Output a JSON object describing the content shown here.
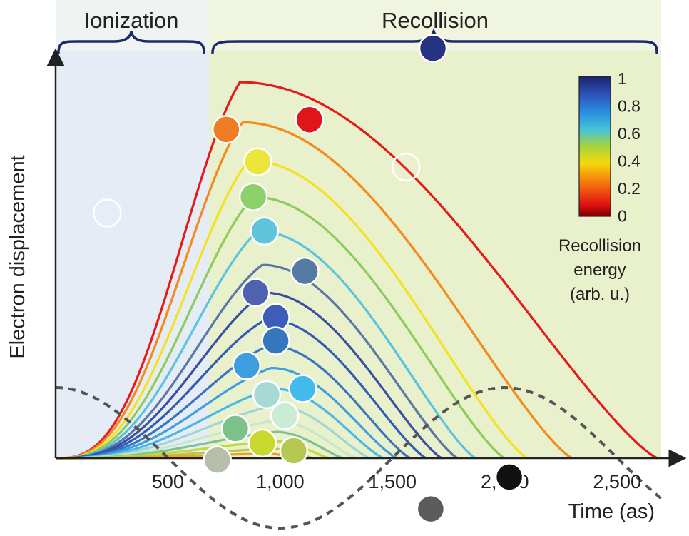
{
  "chart_data": {
    "type": "line",
    "regions": [
      {
        "label": "Ionization",
        "from": 0,
        "to": 650
      },
      {
        "label": "Recollision",
        "from": 650,
        "to": 2700
      }
    ],
    "xlabel": "Time (as)",
    "ylabel": "Electron displacement",
    "xlim": [
      0,
      2700
    ],
    "x_ticks": [
      500,
      1000,
      1500,
      2000,
      2500
    ],
    "x_tick_labels": [
      "500",
      "1,000",
      "1,500",
      "2,000",
      "2,500"
    ],
    "colorbar": {
      "title_lines": [
        "Recollision",
        "energy",
        "(arb. u.)"
      ],
      "ticks": [
        "1",
        "0.8",
        "0.6",
        "0.4",
        "0.2",
        "0"
      ]
    },
    "series": [
      {
        "t0": 0,
        "peak_time": 820,
        "end": 2680,
        "peak": 1.0,
        "color": "#e31b1b"
      },
      {
        "t0": 0,
        "peak_time": 830,
        "end": 2300,
        "peak": 0.893,
        "color": "#f28a1e"
      },
      {
        "t0": 0,
        "peak_time": 860,
        "end": 2100,
        "peak": 0.792,
        "color": "#f2e21f"
      },
      {
        "t0": 0,
        "peak_time": 880,
        "end": 2000,
        "peak": 0.695,
        "color": "#8ccc5a"
      },
      {
        "t0": 0,
        "peak_time": 900,
        "end": 1870,
        "peak": 0.604,
        "color": "#5bc3dd"
      },
      {
        "t0": 0,
        "peak_time": 920,
        "end": 1790,
        "peak": 0.514,
        "color": "#5878a8"
      },
      {
        "t0": 0,
        "peak_time": 930,
        "end": 1720,
        "peak": 0.44,
        "color": "#3b4fa0"
      },
      {
        "t0": 0,
        "peak_time": 940,
        "end": 1650,
        "peak": 0.37,
        "color": "#2f5cb5"
      },
      {
        "t0": 0,
        "peak_time": 950,
        "end": 1580,
        "peak": 0.3,
        "color": "#3a74c0"
      },
      {
        "t0": 0,
        "peak_time": 960,
        "end": 1520,
        "peak": 0.24,
        "color": "#3f9ee0"
      },
      {
        "t0": 0,
        "peak_time": 970,
        "end": 1460,
        "peak": 0.185,
        "color": "#49b8e8"
      },
      {
        "t0": 0,
        "peak_time": 975,
        "end": 1400,
        "peak": 0.14,
        "color": "#9fd5d4"
      },
      {
        "t0": 0,
        "peak_time": 980,
        "end": 1340,
        "peak": 0.1,
        "color": "#c5e8c8"
      },
      {
        "t0": 0,
        "peak_time": 980,
        "end": 1280,
        "peak": 0.07,
        "color": "#7cc48f"
      },
      {
        "t0": 0,
        "peak_time": 975,
        "end": 1220,
        "peak": 0.045,
        "color": "#c4d838"
      },
      {
        "t0": 0,
        "peak_time": 960,
        "end": 1150,
        "peak": 0.025,
        "color": "#b6c850"
      },
      {
        "t0": 0,
        "peak_time": 940,
        "end": 1080,
        "peak": 0.012,
        "color": "#f2a020"
      }
    ],
    "driving_field": {
      "style": "dashed",
      "color": "#555555"
    },
    "markers": [
      {
        "t": 1130,
        "d": 0.9,
        "color": "#e0141b"
      },
      {
        "t": 760,
        "d": 0.874,
        "color": "#ee7d24"
      },
      {
        "t": 900,
        "d": 0.788,
        "color": "#ece63a"
      },
      {
        "t": 880,
        "d": 0.695,
        "color": "#8ed16a"
      },
      {
        "t": 930,
        "d": 0.604,
        "color": "#61c4dd"
      },
      {
        "t": 1110,
        "d": 0.497,
        "color": "#557ba3"
      },
      {
        "t": 890,
        "d": 0.44,
        "color": "#4e62b1"
      },
      {
        "t": 980,
        "d": 0.374,
        "color": "#3d5db9"
      },
      {
        "t": 980,
        "d": 0.312,
        "color": "#3676bd"
      },
      {
        "t": 850,
        "d": 0.246,
        "color": "#3e9ddd"
      },
      {
        "t": 1100,
        "d": 0.185,
        "color": "#41bbe9"
      },
      {
        "t": 940,
        "d": 0.169,
        "color": "#a7d9d5"
      },
      {
        "t": 1020,
        "d": 0.113,
        "color": "#cbecd4"
      },
      {
        "t": 800,
        "d": 0.079,
        "color": "#7cc18c"
      },
      {
        "t": 920,
        "d": 0.04,
        "color": "#c8d82c"
      },
      {
        "t": 1060,
        "d": 0.02,
        "color": "#b7c754"
      },
      {
        "t": 720,
        "d": -0.005,
        "color": "#b7bea9"
      },
      {
        "t": 2020,
        "d": -0.05,
        "color": "#111111"
      },
      {
        "t": 1670,
        "d": -0.135,
        "color": "#5b5b5b"
      },
      {
        "t": 1680,
        "d": 1.09,
        "color": "#253382"
      },
      {
        "t": 1560,
        "d": 0.774,
        "color": "none"
      },
      {
        "t": 230,
        "d": 0.652,
        "color": "none"
      }
    ]
  }
}
